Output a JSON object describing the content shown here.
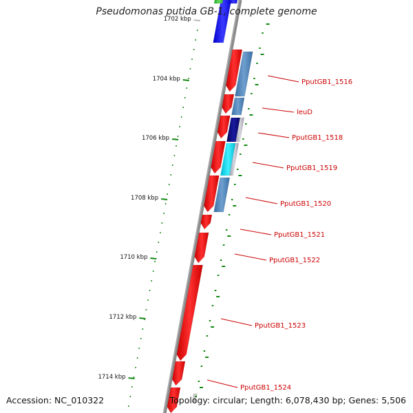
{
  "title": "Pseudomonas putida GB-1, complete genome",
  "footer": {
    "accession": "Accession: NC_010322",
    "topology": "Topology: circular; Length: 6,078,430 bp; Genes: 5,506"
  },
  "ticks": [
    {
      "label": "1702 kbp",
      "faded": true
    },
    {
      "label": "1704 kbp"
    },
    {
      "label": "1706 kbp"
    },
    {
      "label": "1708 kbp"
    },
    {
      "label": "1710 kbp"
    },
    {
      "label": "1712 kbp"
    },
    {
      "label": "1714 kbp"
    }
  ],
  "gene_labels": [
    "PputGB1_1516",
    "leuD",
    "PputGB1_1518",
    "PputGB1_1519",
    "PputGB1_1520",
    "PputGB1_1521",
    "PputGB1_1522",
    "PputGB1_1523",
    "PputGB1_1524"
  ],
  "colors": {
    "backbone": "#8a8a8a",
    "cds": "#ff0000",
    "tick": "#118811",
    "label": "#cc0000",
    "cog_blue": "#4a7fb5",
    "cog_navy": "#0a0a7a",
    "cog_cyan": "#00e5ff",
    "cog_gray": "#b8b8c8",
    "top_blue": "#1a1aff",
    "top_green": "#33cc33"
  }
}
